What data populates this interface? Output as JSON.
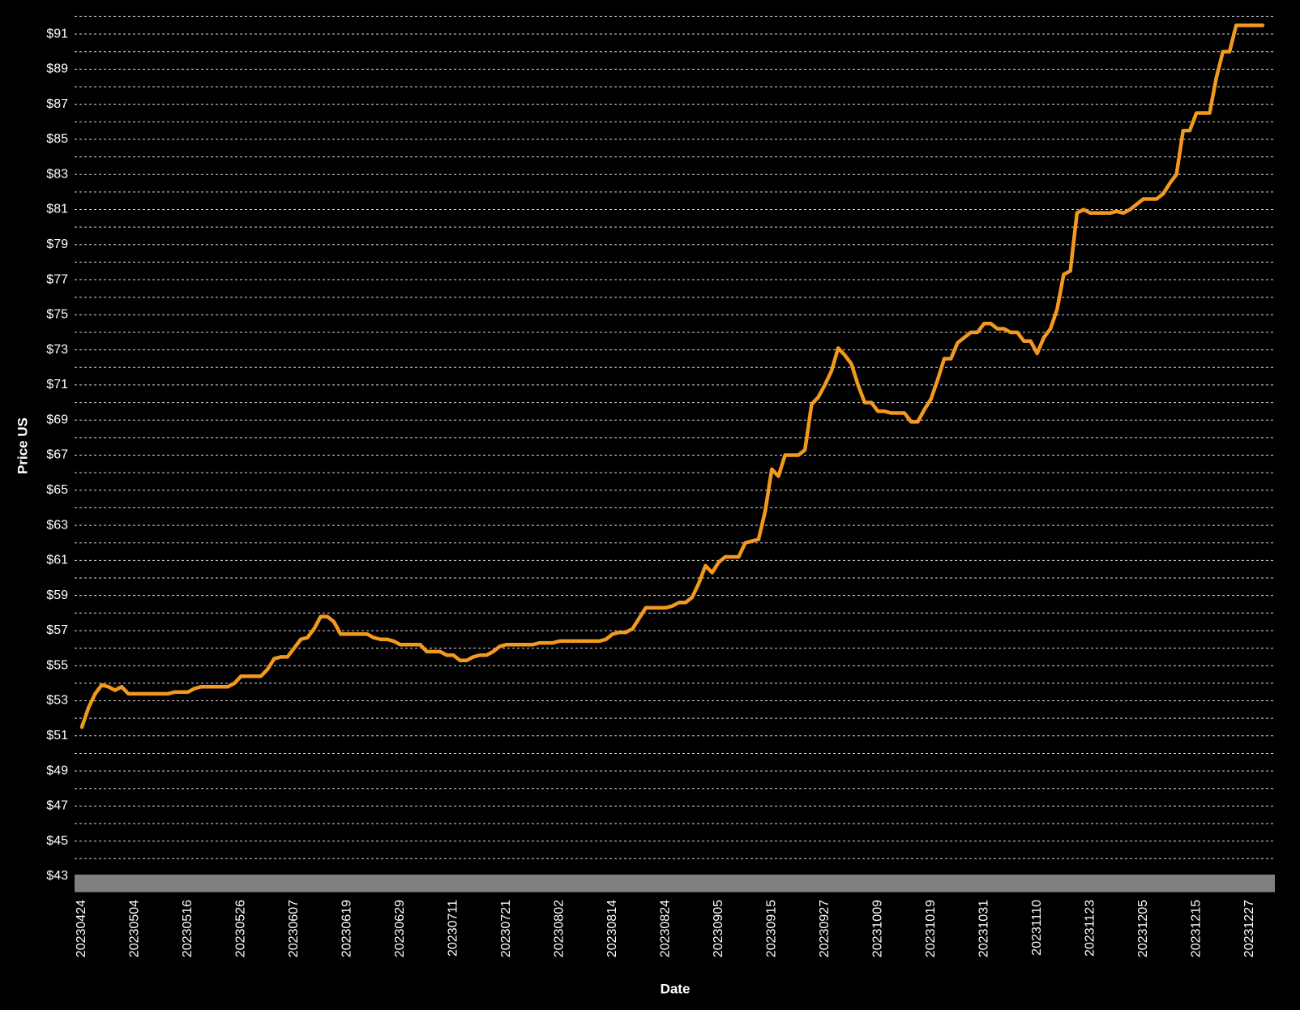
{
  "chart_data": {
    "type": "line",
    "x_label": "Date",
    "y_label": "Price US",
    "categories": [
      "20230424",
      null,
      null,
      null,
      null,
      null,
      null,
      null,
      "20230504",
      null,
      null,
      null,
      null,
      null,
      null,
      null,
      "20230516",
      null,
      null,
      null,
      null,
      null,
      null,
      null,
      "20230526",
      null,
      null,
      null,
      null,
      null,
      null,
      null,
      "20230607",
      null,
      null,
      null,
      null,
      null,
      null,
      null,
      "20230619",
      null,
      null,
      null,
      null,
      null,
      null,
      null,
      "20230629",
      null,
      null,
      null,
      null,
      null,
      null,
      null,
      "20230711",
      null,
      null,
      null,
      null,
      null,
      null,
      null,
      "20230721",
      null,
      null,
      null,
      null,
      null,
      null,
      null,
      "20230802",
      null,
      null,
      null,
      null,
      null,
      null,
      null,
      "20230814",
      null,
      null,
      null,
      null,
      null,
      null,
      null,
      "20230824",
      null,
      null,
      null,
      null,
      null,
      null,
      null,
      "20230905",
      null,
      null,
      null,
      null,
      null,
      null,
      null,
      "20230915",
      null,
      null,
      null,
      null,
      null,
      null,
      null,
      "20230927",
      null,
      null,
      null,
      null,
      null,
      null,
      null,
      "20231009",
      null,
      null,
      null,
      null,
      null,
      null,
      null,
      "20231019",
      null,
      null,
      null,
      null,
      null,
      null,
      null,
      "20231031",
      null,
      null,
      null,
      null,
      null,
      null,
      null,
      "20231110",
      null,
      null,
      null,
      null,
      null,
      null,
      null,
      "20231123",
      null,
      null,
      null,
      null,
      null,
      null,
      null,
      "20231205",
      null,
      null,
      null,
      null,
      null,
      null,
      null,
      "20231215",
      null,
      null,
      null,
      null,
      null,
      null,
      null,
      "20231227",
      null,
      null
    ],
    "values": [
      51.5,
      52.6,
      53.4,
      53.9,
      53.8,
      53.6,
      53.8,
      53.4,
      53.4,
      53.4,
      53.4,
      53.4,
      53.4,
      53.4,
      53.5,
      53.5,
      53.5,
      53.7,
      53.8,
      53.8,
      53.8,
      53.8,
      53.8,
      54.0,
      54.4,
      54.4,
      54.4,
      54.4,
      54.8,
      55.4,
      55.5,
      55.5,
      56.0,
      56.5,
      56.6,
      57.1,
      57.8,
      57.8,
      57.5,
      56.8,
      56.8,
      56.8,
      56.8,
      56.8,
      56.6,
      56.5,
      56.5,
      56.4,
      56.2,
      56.2,
      56.2,
      56.2,
      55.8,
      55.8,
      55.8,
      55.6,
      55.6,
      55.3,
      55.3,
      55.5,
      55.6,
      55.6,
      55.8,
      56.1,
      56.2,
      56.2,
      56.2,
      56.2,
      56.2,
      56.3,
      56.3,
      56.3,
      56.4,
      56.4,
      56.4,
      56.4,
      56.4,
      56.4,
      56.4,
      56.5,
      56.8,
      56.9,
      56.9,
      57.1,
      57.7,
      58.3,
      58.3,
      58.3,
      58.3,
      58.4,
      58.6,
      58.6,
      58.9,
      59.7,
      60.7,
      60.3,
      60.9,
      61.2,
      61.2,
      61.2,
      62.0,
      62.1,
      62.2,
      63.8,
      66.2,
      65.8,
      67.0,
      67.0,
      67.0,
      67.3,
      69.9,
      70.3,
      71.0,
      71.8,
      73.1,
      72.7,
      72.2,
      71.0,
      70.0,
      70.0,
      69.5,
      69.5,
      69.4,
      69.4,
      69.4,
      68.9,
      68.9,
      69.6,
      70.2,
      71.3,
      72.5,
      72.5,
      73.4,
      73.7,
      74.0,
      74.0,
      74.5,
      74.5,
      74.2,
      74.2,
      74.0,
      74.0,
      73.5,
      73.5,
      72.8,
      73.7,
      74.2,
      75.3,
      77.3,
      77.5,
      80.8,
      81.0,
      80.8,
      80.8,
      80.8,
      80.8,
      80.9,
      80.8,
      81.0,
      81.3,
      81.6,
      81.6,
      81.6,
      81.9,
      82.5,
      83.0,
      85.5,
      85.5,
      86.5,
      86.5,
      86.5,
      88.5,
      90.0,
      90.0,
      91.5,
      91.5,
      91.5,
      91.5,
      91.5
    ],
    "color": "#f39a1e",
    "ylim": [
      42,
      92
    ],
    "yticks": [
      {
        "value": 43,
        "label": "$43"
      },
      {
        "value": 45,
        "label": "$45"
      },
      {
        "value": 47,
        "label": "$47"
      },
      {
        "value": 49,
        "label": "$49"
      },
      {
        "value": 51,
        "label": "$51"
      },
      {
        "value": 53,
        "label": "$53"
      },
      {
        "value": 55,
        "label": "$55"
      },
      {
        "value": 57,
        "label": "$57"
      },
      {
        "value": 59,
        "label": "$59"
      },
      {
        "value": 61,
        "label": "$61"
      },
      {
        "value": 63,
        "label": "$63"
      },
      {
        "value": 65,
        "label": "$65"
      },
      {
        "value": 67,
        "label": "$67"
      },
      {
        "value": 69,
        "label": "$69"
      },
      {
        "value": 71,
        "label": "$71"
      },
      {
        "value": 73,
        "label": "$73"
      },
      {
        "value": 75,
        "label": "$75"
      },
      {
        "value": 77,
        "label": "$77"
      },
      {
        "value": 79,
        "label": "$79"
      },
      {
        "value": 81,
        "label": "$81"
      },
      {
        "value": 83,
        "label": "$83"
      },
      {
        "value": 85,
        "label": "$85"
      },
      {
        "value": 87,
        "label": "$87"
      },
      {
        "value": 89,
        "label": "$89"
      },
      {
        "value": 91,
        "label": "$91"
      }
    ],
    "y_minor_ticks": [
      44,
      46,
      48,
      50,
      52,
      54,
      56,
      58,
      60,
      62,
      64,
      66,
      68,
      70,
      72,
      74,
      76,
      78,
      80,
      82,
      84,
      86,
      88,
      90,
      92
    ],
    "grid": true
  }
}
